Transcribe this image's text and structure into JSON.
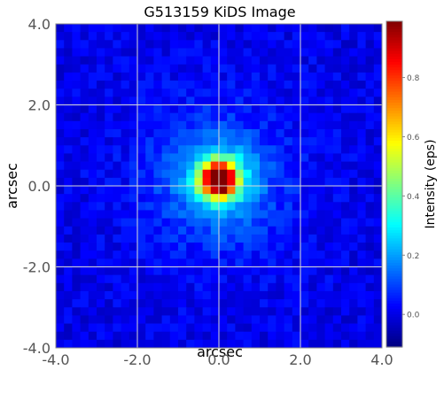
{
  "chart_data": {
    "type": "heatmap",
    "title": "G513159 KiDS Image",
    "xlabel": "arcsec",
    "ylabel": "arcsec",
    "xlim": [
      -4.0,
      4.0
    ],
    "ylim": [
      -4.0,
      4.0
    ],
    "x_ticks": [
      -4.0,
      -2.0,
      0.0,
      2.0,
      4.0
    ],
    "x_tick_labels": [
      "-4.0",
      "-2.0",
      "0.0",
      "2.0",
      "4.0"
    ],
    "y_ticks": [
      -4.0,
      -2.0,
      0.0,
      2.0,
      4.0
    ],
    "y_tick_labels": [
      "-4.0",
      "-2.0",
      "0.0",
      "2.0",
      "4.0"
    ],
    "grid": true,
    "grid_size": [
      40,
      40
    ],
    "colormap": "jet",
    "source_center": [
      0.0,
      0.15
    ],
    "peak_intensity": 0.98,
    "colorbar": {
      "label": "Intensity (eps)",
      "range": [
        -0.11,
        0.99
      ],
      "ticks": [
        0.0,
        0.2,
        0.4,
        0.6,
        0.8
      ],
      "tick_labels": [
        "0.0",
        "0.2",
        "0.4",
        "0.6",
        "0.8"
      ]
    }
  }
}
